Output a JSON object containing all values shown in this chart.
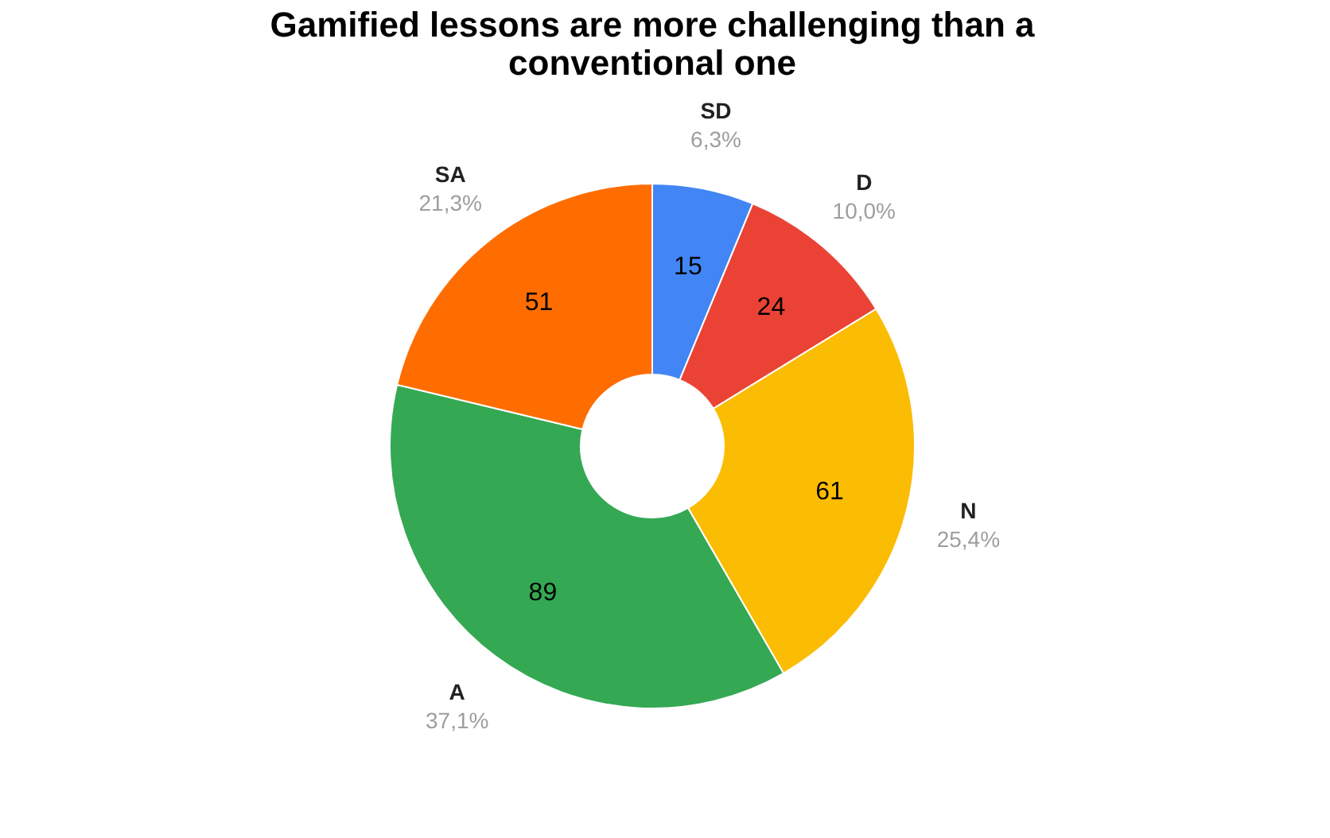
{
  "chart_data": {
    "type": "donut",
    "title": "Gamified lessons are more challenging than a conventional one",
    "categories": [
      "SD",
      "D",
      "N",
      "A",
      "SA"
    ],
    "values": [
      15,
      24,
      61,
      89,
      51
    ],
    "colors": [
      "#4285f4",
      "#ea4335",
      "#fbbc04",
      "#34a853",
      "#ff6d01"
    ],
    "data_labels": true,
    "annotations": [
      "6,3%",
      "10,0%",
      "25,4%",
      "37,1%",
      "21,3%"
    ],
    "legend": false
  }
}
